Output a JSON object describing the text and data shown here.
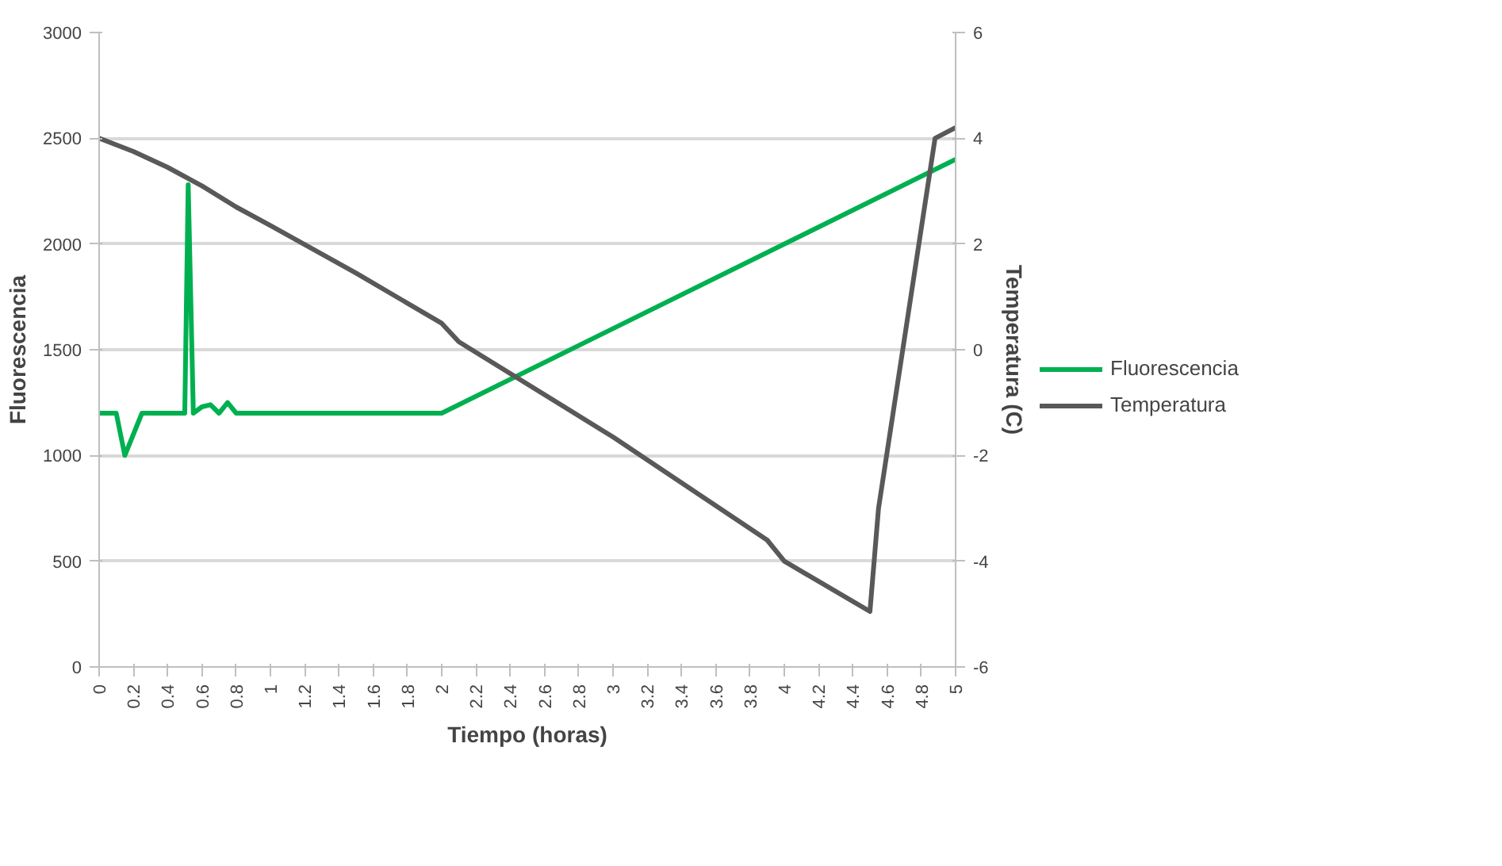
{
  "chart_data": {
    "type": "line",
    "xlabel": "Tiempo (horas)",
    "ylabel": "Fluorescencia",
    "y2label": "Temperatura (C)",
    "xlim": [
      0,
      5
    ],
    "xticks": [
      0,
      0.2,
      0.4,
      0.6,
      0.8,
      1,
      1.2,
      1.4,
      1.6,
      1.8,
      2,
      2.2,
      2.4,
      2.6,
      2.8,
      3,
      3.2,
      3.4,
      3.6,
      3.8,
      4,
      4.2,
      4.4,
      4.6,
      4.8,
      5
    ],
    "ylim": [
      0,
      3000
    ],
    "yticks": [
      0,
      500,
      1000,
      1500,
      2000,
      2500,
      3000
    ],
    "y2lim": [
      -6,
      6
    ],
    "y2ticks": [
      -6,
      -4,
      -2,
      0,
      2,
      4,
      6
    ],
    "grid": "y",
    "legend": "right",
    "marker": "none",
    "line_style": "solid",
    "series": [
      {
        "name": "Fluorescencia",
        "color": "#00b050",
        "x": [
          0,
          0.1,
          0.15,
          0.25,
          0.5,
          0.52,
          0.55,
          0.6,
          0.65,
          0.7,
          0.75,
          0.8,
          2.0,
          5.0
        ],
        "values": [
          1200,
          1200,
          1000,
          1200,
          1200,
          2280,
          1200,
          1230,
          1240,
          1200,
          1250,
          1200,
          1200,
          2400
        ]
      },
      {
        "name": "Temperatura",
        "color": "#595959",
        "axis": "y2",
        "x": [
          0,
          0.2,
          0.4,
          0.6,
          0.8,
          1.0,
          1.5,
          2.0,
          2.1,
          3.0,
          3.9,
          4.0,
          4.5,
          4.55,
          4.88,
          5.0
        ],
        "values": [
          4,
          3.75,
          3.45,
          3.1,
          2.7,
          2.35,
          1.45,
          0.5,
          0.15,
          -1.65,
          -3.6,
          -4.0,
          -4.95,
          -3.0,
          4.0,
          4.2
        ]
      }
    ]
  }
}
